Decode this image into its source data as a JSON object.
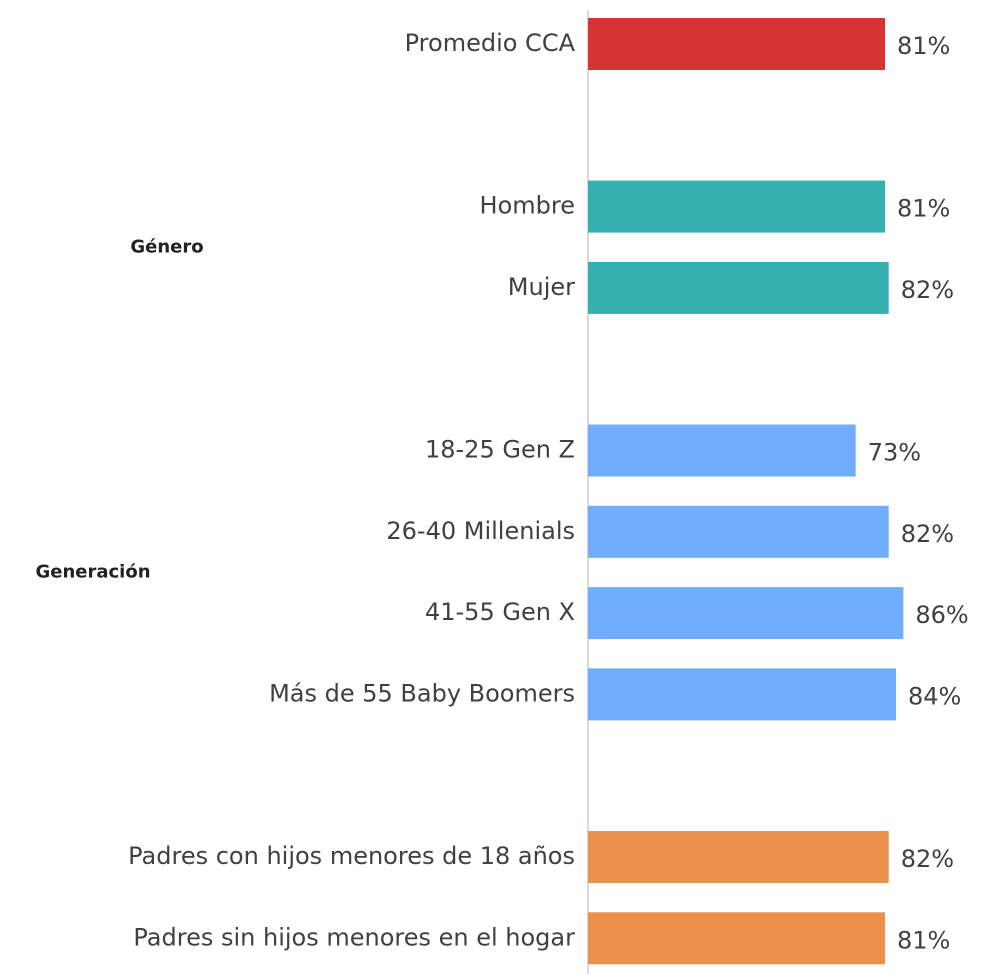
{
  "chart_data": {
    "type": "bar",
    "orientation": "horizontal",
    "xlim": [
      0,
      100
    ],
    "groups": [
      {
        "categories": [
          "Promedio CCA"
        ],
        "values": [
          81
        ],
        "value_labels": [
          "81%"
        ],
        "color": "#d63333"
      },
      {
        "name": "Género",
        "categories": [
          "Hombre",
          "Mujer"
        ],
        "values": [
          81,
          82
        ],
        "value_labels": [
          "81%",
          "82%"
        ],
        "color": "#35b0b0"
      },
      {
        "name": "Generación",
        "categories": [
          "18-25 Gen Z",
          "26-40 Millenials",
          "41-55 Gen X",
          "Más de 55  Baby Boomers"
        ],
        "values": [
          73,
          82,
          86,
          84
        ],
        "value_labels": [
          "73%",
          "82%",
          "86%",
          "84%"
        ],
        "color": "#70adfc"
      },
      {
        "categories": [
          "Padres con hijos menores de 18 años",
          "Padres sin hijos menores en el hogar"
        ],
        "values": [
          82,
          81
        ],
        "value_labels": [
          "82%",
          "81%"
        ],
        "color": "#ec914c"
      }
    ]
  }
}
